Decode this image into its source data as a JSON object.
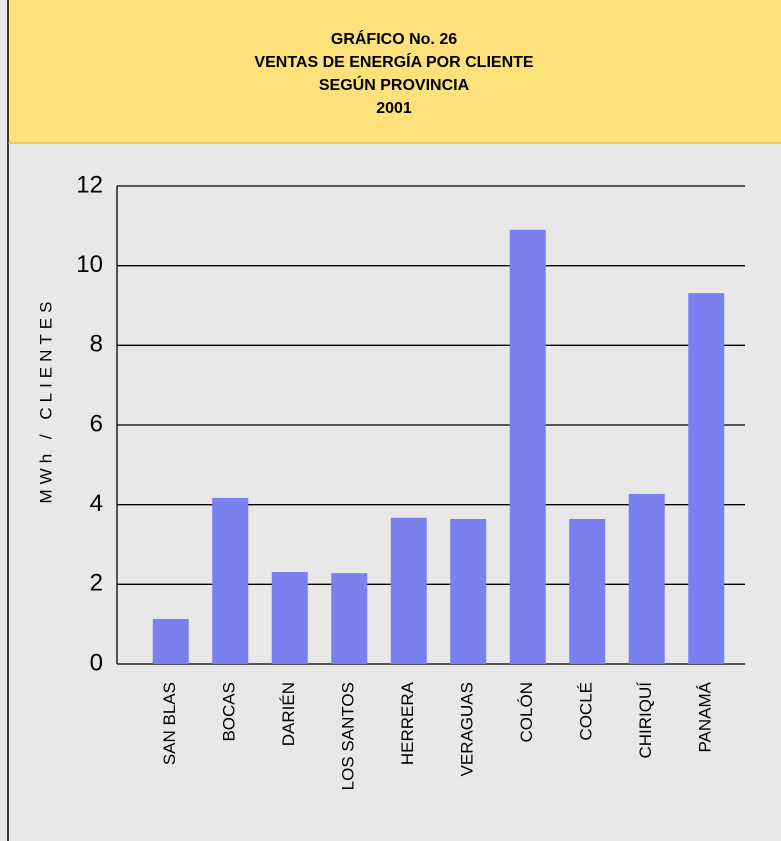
{
  "chart_data": {
    "type": "bar",
    "title_lines": [
      "GRÁFICO No. 26",
      "VENTAS DE ENERGÍA POR CLIENTE",
      "SEGÚN PROVINCIA",
      "2001"
    ],
    "y_label": "MWh / CLIENTES",
    "categories": [
      "SAN BLAS",
      "BOCAS",
      "DARIÉN",
      "LOS SANTOS",
      "HERRERA",
      "VERAGUAS",
      "COLÓN",
      "COCLÉ",
      "CHIRIQUÍ",
      "PANAMÁ"
    ],
    "values": [
      1.13,
      4.17,
      2.31,
      2.28,
      3.67,
      3.64,
      10.9,
      3.64,
      4.27,
      9.31
    ],
    "color": "#7b80f0",
    "ylim": [
      0,
      12
    ],
    "yticks": [
      0,
      2,
      4,
      6,
      8,
      10,
      12
    ],
    "grid": true
  }
}
